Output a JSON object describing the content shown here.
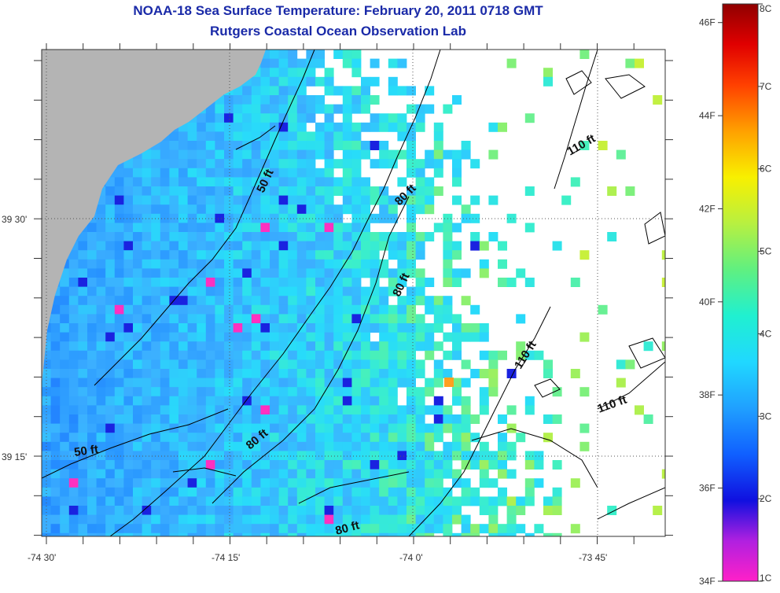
{
  "header": {
    "title": "NOAA-18 Sea Surface Temperature:  February 20, 2011 0718 GMT",
    "subtitle": "Rutgers Coastal Ocean Observation Lab"
  },
  "axes": {
    "x_ticks": [
      "-74 30'",
      "-74 15'",
      "-74 0'",
      "-73 45'"
    ],
    "y_ticks": [
      "39 30'",
      "39 15'"
    ]
  },
  "depth_contours": [
    "50 ft",
    "50 ft",
    "80 ft",
    "80 ft",
    "80 ft",
    "80 ft",
    "110 ft",
    "110 ft"
  ],
  "colorbar": {
    "fahrenheit": [
      "46F",
      "44F",
      "42F",
      "40F",
      "38F",
      "36F",
      "34F"
    ],
    "celsius": [
      "8C",
      "7C",
      "6C",
      "5C",
      "4C",
      "3C",
      "2C",
      "1C"
    ],
    "range_c": [
      1,
      8
    ],
    "range_f": [
      34,
      46.4
    ]
  },
  "colors": {
    "title": "#1a2aa8",
    "land": "#b4b4b4",
    "no_data": "#ffffff",
    "dominant_water": "#3aa6ff"
  }
}
